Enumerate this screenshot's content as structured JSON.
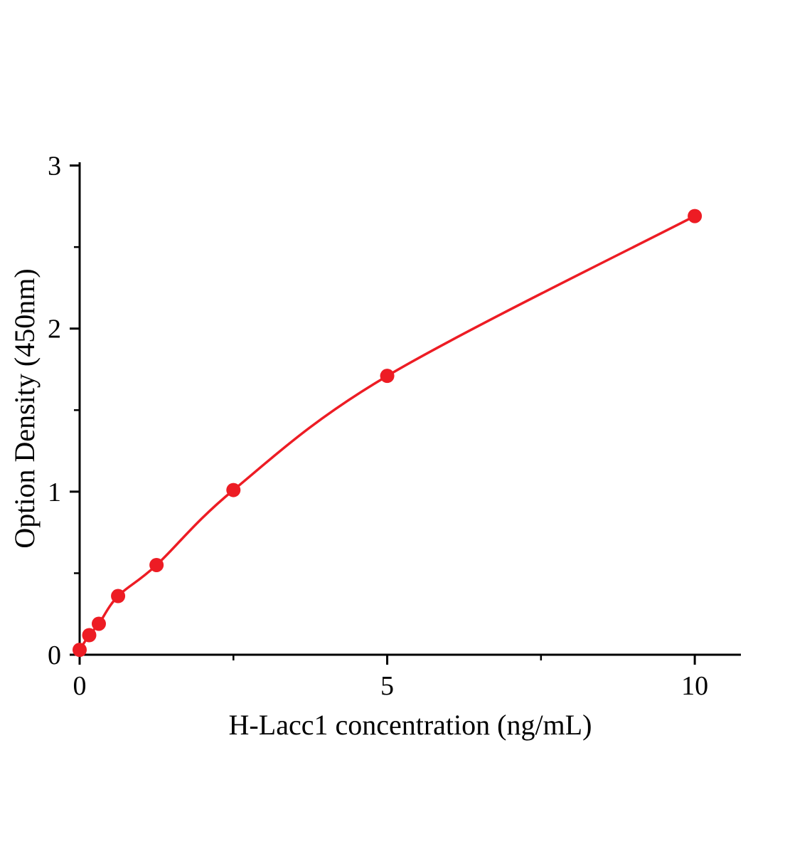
{
  "chart_data": {
    "type": "scatter",
    "title": "",
    "xlabel": "H-Lacc1 concentration (ng/mL)",
    "ylabel": "Option Density (450nm)",
    "x": [
      0,
      0.156,
      0.312,
      0.625,
      1.25,
      2.5,
      5,
      10
    ],
    "y": [
      0.03,
      0.12,
      0.19,
      0.36,
      0.55,
      1.01,
      1.71,
      2.69
    ],
    "xlim": [
      0,
      10.75
    ],
    "ylim": [
      0,
      3.02
    ],
    "x_major_ticks": [
      0,
      5,
      10
    ],
    "x_minor_ticks": [
      2.5,
      7.5
    ],
    "y_major_ticks": [
      0,
      1,
      2,
      3
    ],
    "y_minor_ticks": [
      0.5,
      1.5,
      2.5
    ],
    "line_color": "#ed1c24",
    "marker_color": "#ed1c24",
    "axis_color": "#000000",
    "grid": false,
    "legend": "none",
    "curve_style": "smooth-fit-through-points",
    "marker_style": "filled-circle"
  }
}
